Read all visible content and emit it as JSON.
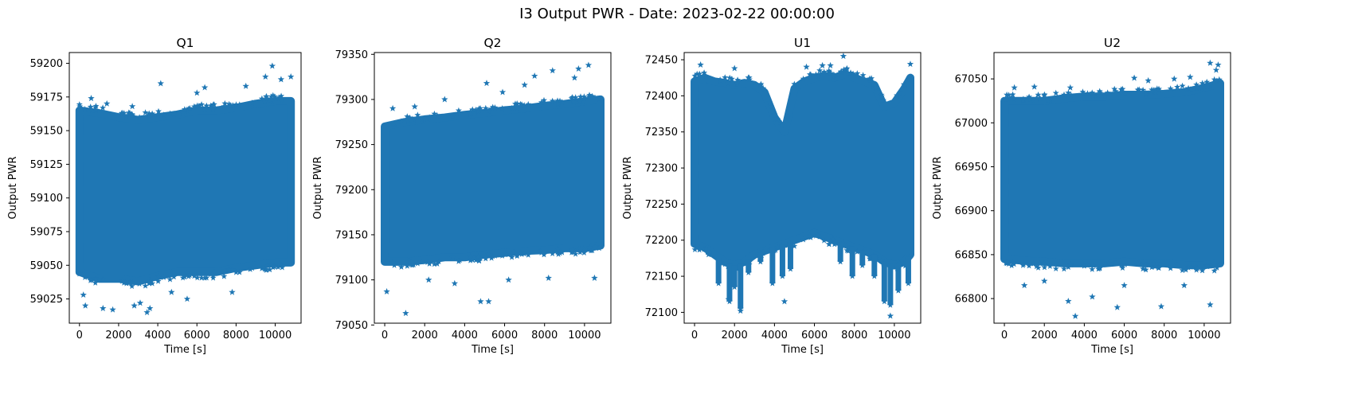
{
  "figure_title": "I3 Output PWR - Date: 2023-02-22 00:00:00",
  "colors": {
    "series": "#1f77b4",
    "axis": "#000000",
    "background": "#ffffff"
  },
  "chart_data": [
    {
      "type": "scatter",
      "title": "Q1",
      "xlabel": "Time [s]",
      "ylabel": "Output PWR",
      "marker": "star",
      "xlim": [
        -520,
        11320
      ],
      "ylim": [
        59007,
        59208
      ],
      "xticks": [
        0,
        2000,
        4000,
        6000,
        8000,
        10000
      ],
      "yticks": [
        59025,
        59050,
        59075,
        59100,
        59125,
        59150,
        59175,
        59200
      ],
      "band": {
        "x": [
          0,
          1000,
          2000,
          3000,
          4000,
          5000,
          6000,
          7000,
          8000,
          9000,
          10000,
          10800
        ],
        "upper": [
          59165,
          59163,
          59160,
          59158,
          59160,
          59162,
          59165,
          59165,
          59167,
          59170,
          59172,
          59172
        ],
        "lower": [
          59045,
          59040,
          59040,
          59038,
          59042,
          59045,
          59045,
          59045,
          59048,
          59050,
          59052,
          59052
        ]
      },
      "outliers": [
        [
          4150,
          59185
        ],
        [
          9850,
          59198
        ],
        [
          10800,
          59190
        ],
        [
          9500,
          59190
        ],
        [
          300,
          59020
        ],
        [
          1200,
          59018
        ],
        [
          1700,
          59017
        ],
        [
          2800,
          59020
        ],
        [
          3450,
          59015
        ],
        [
          5500,
          59025
        ],
        [
          3100,
          59022
        ],
        [
          7800,
          59030
        ],
        [
          6000,
          59178
        ],
        [
          6400,
          59182
        ],
        [
          8500,
          59183
        ],
        [
          2700,
          59168
        ],
        [
          1400,
          59170
        ],
        [
          600,
          59174
        ],
        [
          10300,
          59188
        ],
        [
          4700,
          59030
        ],
        [
          200,
          59028
        ],
        [
          3600,
          59018
        ]
      ]
    },
    {
      "type": "scatter",
      "title": "Q2",
      "xlabel": "Time [s]",
      "ylabel": "Output PWR",
      "marker": "star",
      "xlim": [
        -520,
        11320
      ],
      "ylim": [
        79052,
        79352
      ],
      "xticks": [
        0,
        2000,
        4000,
        6000,
        8000,
        10000
      ],
      "yticks": [
        79050,
        79100,
        79150,
        79200,
        79250,
        79300,
        79350
      ],
      "band": {
        "x": [
          0,
          1000,
          2000,
          3000,
          4000,
          5000,
          6000,
          7000,
          8000,
          9000,
          10000,
          10800
        ],
        "upper": [
          79270,
          79275,
          79278,
          79280,
          79283,
          79285,
          79288,
          79290,
          79293,
          79295,
          79298,
          79300
        ],
        "lower": [
          79120,
          79120,
          79122,
          79125,
          79125,
          79128,
          79130,
          79132,
          79133,
          79135,
          79135,
          79138
        ]
      },
      "outliers": [
        [
          1050,
          79063
        ],
        [
          4800,
          79076
        ],
        [
          5200,
          79076
        ],
        [
          100,
          79087
        ],
        [
          400,
          79290
        ],
        [
          1500,
          79292
        ],
        [
          3000,
          79300
        ],
        [
          5100,
          79318
        ],
        [
          5900,
          79308
        ],
        [
          7000,
          79316
        ],
        [
          8400,
          79332
        ],
        [
          9700,
          79334
        ],
        [
          10200,
          79338
        ],
        [
          7500,
          79326
        ],
        [
          3500,
          79096
        ],
        [
          2200,
          79100
        ],
        [
          6200,
          79100
        ],
        [
          8200,
          79102
        ],
        [
          10500,
          79102
        ],
        [
          9500,
          79324
        ]
      ]
    },
    {
      "type": "scatter",
      "title": "U1",
      "xlabel": "Time [s]",
      "ylabel": "Output PWR",
      "marker": "star",
      "xlim": [
        -520,
        11320
      ],
      "ylim": [
        72085,
        72460
      ],
      "xticks": [
        0,
        2000,
        4000,
        6000,
        8000,
        10000
      ],
      "yticks": [
        72100,
        72150,
        72200,
        72250,
        72300,
        72350,
        72400,
        72450
      ],
      "band": {
        "x": [
          0,
          500,
          1000,
          1500,
          2000,
          2500,
          3000,
          3500,
          4000,
          4500,
          5000,
          5500,
          6000,
          6500,
          7000,
          7500,
          8000,
          8500,
          9000,
          9500,
          10000,
          10500,
          10800
        ],
        "upper": [
          72420,
          72425,
          72420,
          72418,
          72415,
          72418,
          72415,
          72405,
          72370,
          72350,
          72410,
          72420,
          72425,
          72428,
          72425,
          72430,
          72425,
          72420,
          72415,
          72385,
          72390,
          72410,
          72425
        ],
        "lower": [
          72195,
          72190,
          72180,
          72170,
          72165,
          72170,
          72180,
          72185,
          72190,
          72195,
          72200,
          72205,
          72210,
          72205,
          72200,
          72195,
          72190,
          72185,
          72180,
          72170,
          72165,
          72170,
          72180
        ]
      },
      "spikes": [
        [
          700,
          72180
        ],
        [
          1200,
          72140
        ],
        [
          1750,
          72115
        ],
        [
          2000,
          72135
        ],
        [
          2300,
          72105
        ],
        [
          2700,
          72155
        ],
        [
          3300,
          72170
        ],
        [
          3900,
          72140
        ],
        [
          4400,
          72150
        ],
        [
          4800,
          72160
        ],
        [
          7300,
          72170
        ],
        [
          7900,
          72150
        ],
        [
          8400,
          72165
        ],
        [
          9000,
          72150
        ],
        [
          9500,
          72115
        ],
        [
          9800,
          72110
        ],
        [
          10200,
          72130
        ],
        [
          10700,
          72140
        ]
      ],
      "outliers": [
        [
          7450,
          72455
        ],
        [
          6400,
          72442
        ],
        [
          6800,
          72442
        ],
        [
          5600,
          72440
        ],
        [
          300,
          72443
        ],
        [
          2000,
          72438
        ],
        [
          10800,
          72444
        ],
        [
          9800,
          72095
        ],
        [
          4500,
          72115
        ],
        [
          2300,
          72102
        ],
        [
          1700,
          72118
        ]
      ]
    },
    {
      "type": "scatter",
      "title": "U2",
      "xlabel": "Time [s]",
      "ylabel": "Output PWR",
      "marker": "star",
      "xlim": [
        -520,
        11320
      ],
      "ylim": [
        66772,
        67080
      ],
      "xticks": [
        0,
        2000,
        4000,
        6000,
        8000,
        10000
      ],
      "yticks": [
        66800,
        66850,
        66900,
        66950,
        67000,
        67050
      ],
      "band": {
        "x": [
          0,
          1000,
          2000,
          3000,
          4000,
          5000,
          6000,
          7000,
          8000,
          9000,
          10000,
          10800
        ],
        "upper": [
          67025,
          67025,
          67025,
          67028,
          67030,
          67030,
          67032,
          67032,
          67033,
          67035,
          67040,
          67045
        ],
        "lower": [
          66845,
          66843,
          66842,
          66840,
          66840,
          66840,
          66842,
          66840,
          66840,
          66838,
          66838,
          66840
        ]
      },
      "outliers": [
        [
          3550,
          66780
        ],
        [
          5650,
          66790
        ],
        [
          7850,
          66791
        ],
        [
          10300,
          66793
        ],
        [
          3200,
          66797
        ],
        [
          4400,
          66802
        ],
        [
          500,
          67040
        ],
        [
          1500,
          67041
        ],
        [
          3300,
          67040
        ],
        [
          6500,
          67051
        ],
        [
          7200,
          67048
        ],
        [
          8500,
          67050
        ],
        [
          10300,
          67068
        ],
        [
          10700,
          67066
        ],
        [
          9300,
          67052
        ],
        [
          2000,
          66820
        ],
        [
          1000,
          66815
        ],
        [
          6000,
          66815
        ],
        [
          9000,
          66815
        ],
        [
          10600,
          67060
        ]
      ]
    }
  ]
}
